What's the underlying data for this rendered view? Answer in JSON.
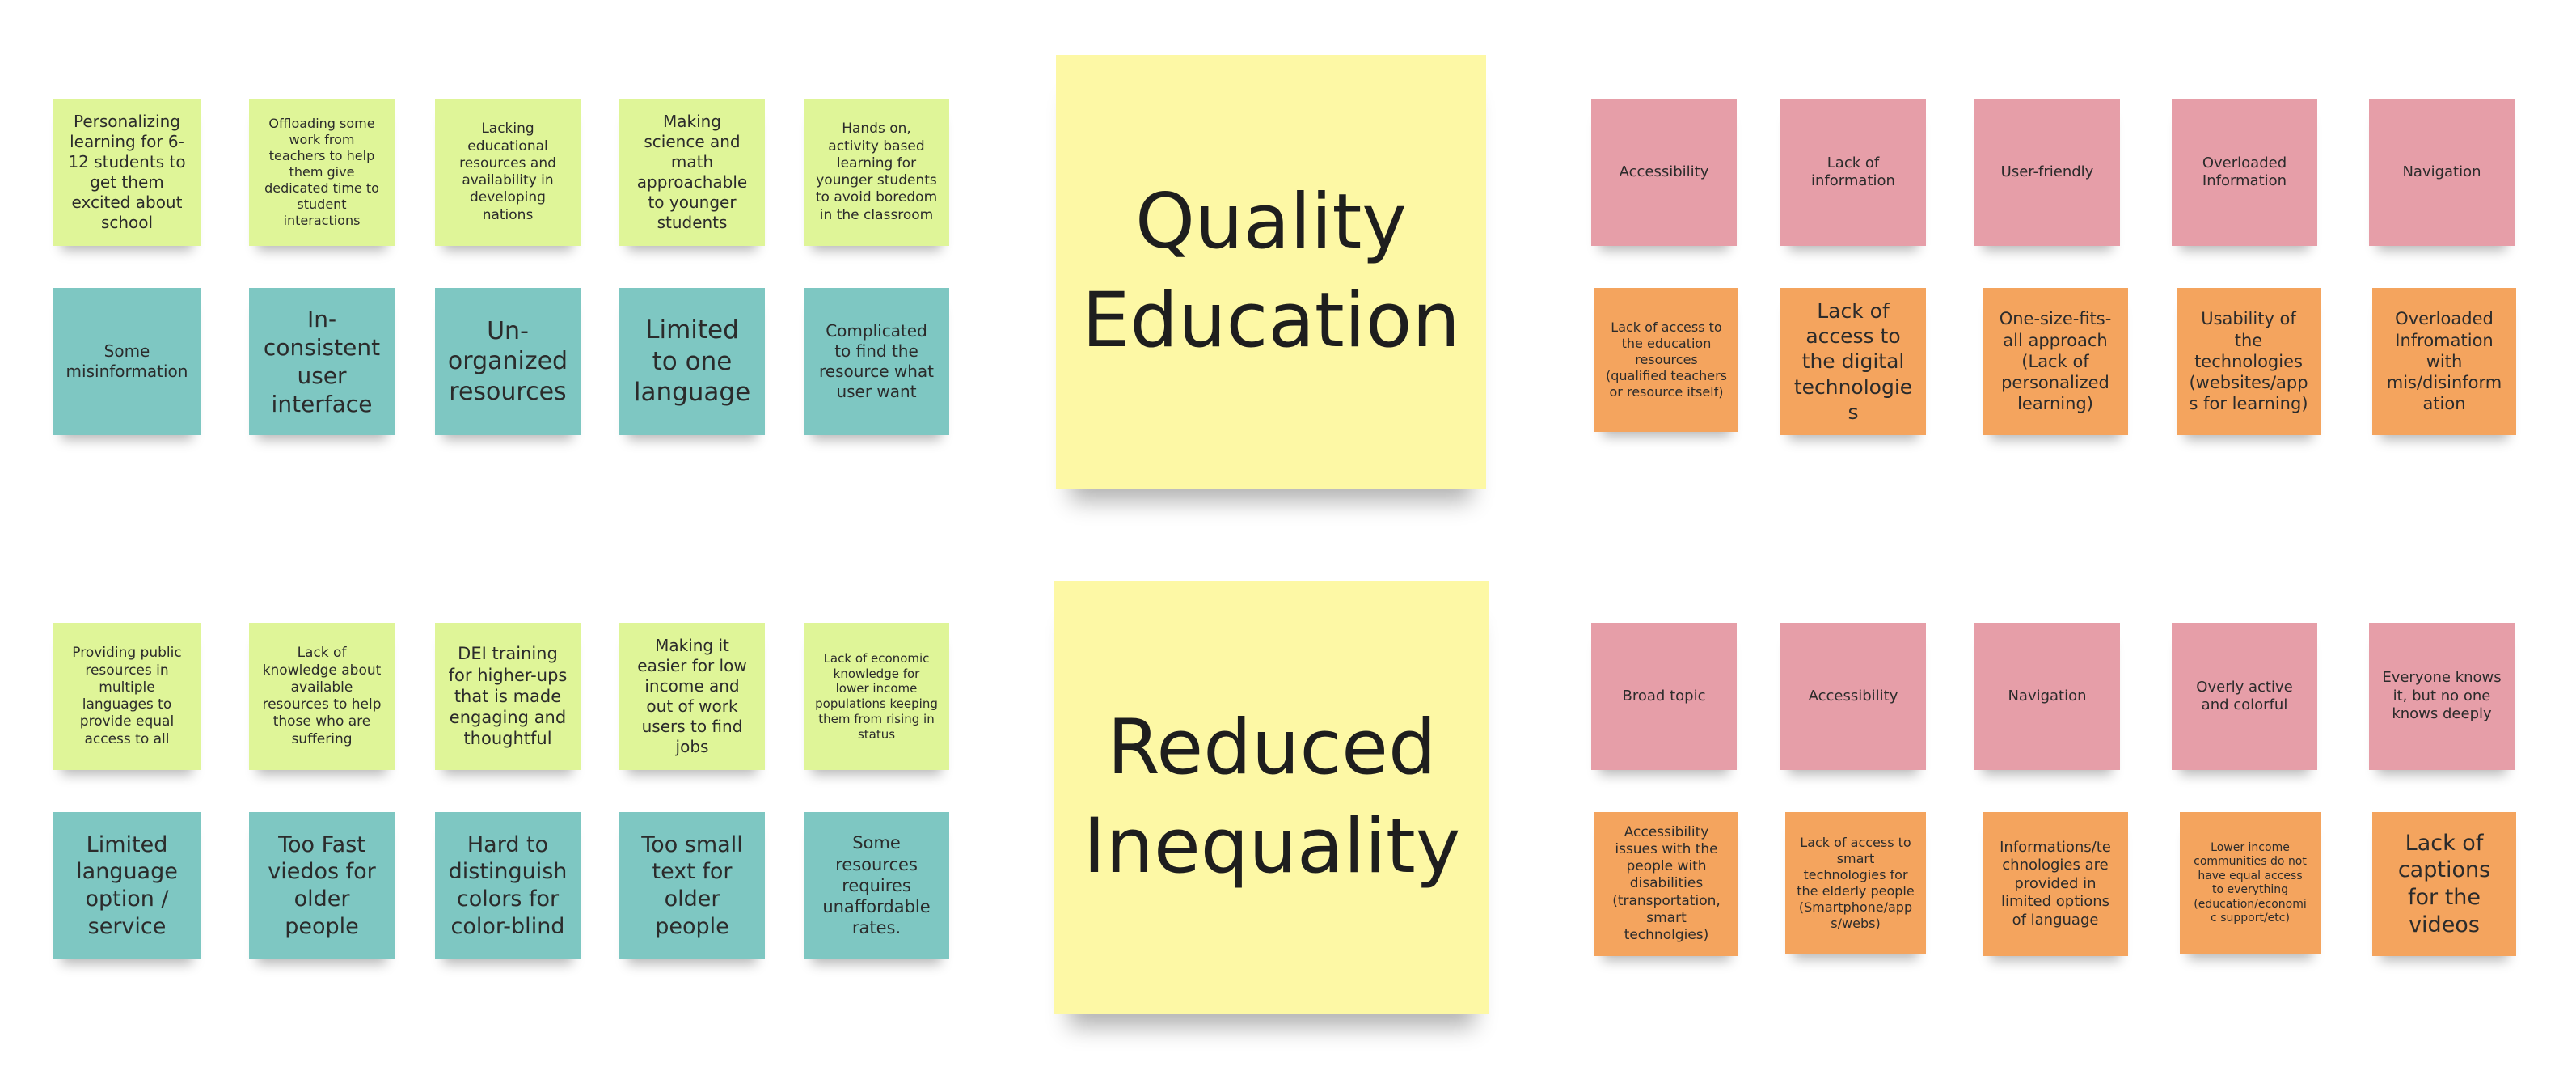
{
  "colors": {
    "lime": "#dff598",
    "teal": "#7ec7c2",
    "pink": "#e69ea8",
    "orange": "#f4a45e",
    "yellow": "#fdf8a5"
  },
  "centers": {
    "quality_education": "Quality\nEducation",
    "reduced_inequality": "Reduced\nInequality"
  },
  "top_left": {
    "row1": [
      "Personalizing learning for 6-12 students to get them excited about school",
      "Offloading some work from teachers to help them give dedicated time to student interactions",
      "Lacking educational resources and availability in developing nations",
      "Making science and math approachable to younger students",
      "Hands on, activity based learning for younger students to avoid boredom in the classroom"
    ],
    "row2": [
      "Some misinformation",
      "In-consistent user interface",
      "Un-organized resources",
      "Limited to one language",
      "Complicated to find the resource what user want"
    ]
  },
  "top_right": {
    "row1": [
      "Accessibility",
      "Lack of information",
      "User-friendly",
      "Overloaded Information",
      "Navigation"
    ],
    "row2": [
      "Lack of access to the education resources (qualified teachers or resource itself)",
      "Lack of access to the digital technologies",
      "One-size-fits-all approach (Lack of personalized learning)",
      "Usability of the technologies (websites/apps for learning)",
      "Overloaded Infromation with mis/disinform ation"
    ]
  },
  "bottom_left": {
    "row1": [
      "Providing public resources in multiple languages to provide equal access to all",
      "Lack of knowledge about available resources to help those who are suffering",
      "DEI training for higher-ups that is made engaging and thoughtful",
      "Making it easier for low income and out of work users to find jobs",
      "Lack of economic knowledge for lower income populations keeping them from rising in status"
    ],
    "row2": [
      "Limited language option / service",
      "Too Fast viedos for older people",
      "Hard to distinguish colors for color-blind",
      "Too small text for older people",
      "Some resources requires unaffordable rates."
    ]
  },
  "bottom_right": {
    "row1": [
      "Broad topic",
      "Accessibility",
      "Navigation",
      "Overly active and colorful",
      "Everyone knows it, but no one knows deeply"
    ],
    "row2": [
      "Accessibility issues with the people with disabilities (transportation, smart technolgies)",
      "Lack of access to smart technologies for the elderly people (Smartphone/app s/webs)",
      "Informations/te chnologies are provided in limited options of language",
      "Lower income communities do not have equal access to everything (education/economi c support/etc)",
      "Lack of captions for the videos"
    ]
  }
}
